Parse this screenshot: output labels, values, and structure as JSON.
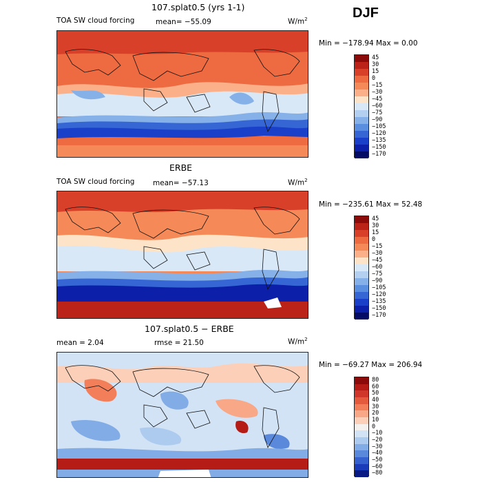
{
  "season": "DJF",
  "panels": [
    {
      "title": "107.splat0.5 (yrs 1-1)",
      "variable": "TOA SW cloud forcing",
      "mean_text": "mean= −55.09",
      "units_base": "W/m",
      "units_exp": "2",
      "minmax": "Min = −178.94 Max =    0.00",
      "levels": [
        "45",
        "30",
        "15",
        "0",
        "−15",
        "−30",
        "−45",
        "−60",
        "−75",
        "−90",
        "−105",
        "−120",
        "−135",
        "−150",
        "−170"
      ],
      "colors": [
        "#8b0a0a",
        "#bb2318",
        "#d9402a",
        "#ee6a40",
        "#f58a58",
        "#fbb08a",
        "#fde3c8",
        "#d9e8f7",
        "#b3d0f0",
        "#86b1e8",
        "#5a8ede",
        "#3566d4",
        "#1a3fc8",
        "#0b1fa8",
        "#040c66"
      ]
    },
    {
      "title": "ERBE",
      "variable": "TOA SW cloud forcing",
      "mean_text": "mean= −57.13",
      "units_base": "W/m",
      "units_exp": "2",
      "minmax": "Min = −235.61 Max =  52.48",
      "levels": [
        "45",
        "30",
        "15",
        "0",
        "−15",
        "−30",
        "−45",
        "−60",
        "−75",
        "−90",
        "−105",
        "−120",
        "−135",
        "−150",
        "−170"
      ],
      "colors": [
        "#8b0a0a",
        "#bb2318",
        "#d9402a",
        "#ee6a40",
        "#f58a58",
        "#fbb08a",
        "#fde3c8",
        "#d9e8f7",
        "#b3d0f0",
        "#86b1e8",
        "#5a8ede",
        "#3566d4",
        "#1a3fc8",
        "#0b1fa8",
        "#040c66"
      ]
    },
    {
      "title": "107.splat0.5 − ERBE",
      "mean_text": "mean =    2.04",
      "rmse_text": "rmse =   21.50",
      "units_base": "W/m",
      "units_exp": "2",
      "minmax": "Min = −69.27 Max = 206.94",
      "levels": [
        "80",
        "60",
        "50",
        "40",
        "30",
        "20",
        "10",
        "0",
        "−10",
        "−20",
        "−30",
        "−40",
        "−50",
        "−60",
        "−80"
      ],
      "colors": [
        "#8b0a0a",
        "#b51c16",
        "#d0362a",
        "#e45a3c",
        "#f27f5a",
        "#f8a787",
        "#fcd0b8",
        "#f4f0ee",
        "#d2e3f6",
        "#adcbee",
        "#82ace6",
        "#5a89dc",
        "#3562cf",
        "#1b3cb8",
        "#0a1a84"
      ]
    }
  ]
}
